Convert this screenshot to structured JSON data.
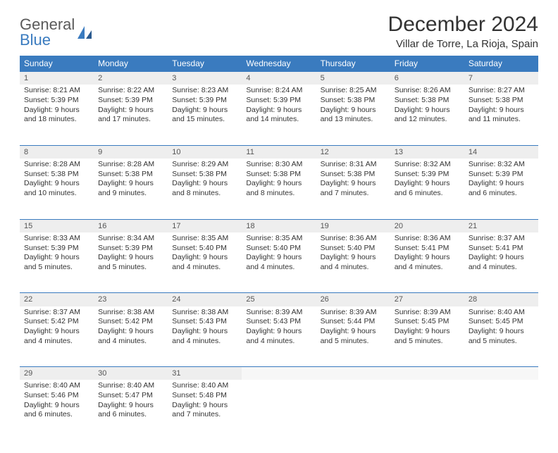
{
  "logo": {
    "part1": "General",
    "part2": "Blue"
  },
  "title": "December 2024",
  "location": "Villar de Torre, La Rioja, Spain",
  "colors": {
    "header_bg": "#3a7bbf",
    "header_text": "#ffffff",
    "daynum_bg": "#eeeeee",
    "row_border": "#3a7bbf",
    "text": "#333333"
  },
  "weekdays": [
    "Sunday",
    "Monday",
    "Tuesday",
    "Wednesday",
    "Thursday",
    "Friday",
    "Saturday"
  ],
  "weeks": [
    {
      "nums": [
        "1",
        "2",
        "3",
        "4",
        "5",
        "6",
        "7"
      ],
      "cells": [
        {
          "sunrise": "Sunrise: 8:21 AM",
          "sunset": "Sunset: 5:39 PM",
          "day1": "Daylight: 9 hours",
          "day2": "and 18 minutes."
        },
        {
          "sunrise": "Sunrise: 8:22 AM",
          "sunset": "Sunset: 5:39 PM",
          "day1": "Daylight: 9 hours",
          "day2": "and 17 minutes."
        },
        {
          "sunrise": "Sunrise: 8:23 AM",
          "sunset": "Sunset: 5:39 PM",
          "day1": "Daylight: 9 hours",
          "day2": "and 15 minutes."
        },
        {
          "sunrise": "Sunrise: 8:24 AM",
          "sunset": "Sunset: 5:39 PM",
          "day1": "Daylight: 9 hours",
          "day2": "and 14 minutes."
        },
        {
          "sunrise": "Sunrise: 8:25 AM",
          "sunset": "Sunset: 5:38 PM",
          "day1": "Daylight: 9 hours",
          "day2": "and 13 minutes."
        },
        {
          "sunrise": "Sunrise: 8:26 AM",
          "sunset": "Sunset: 5:38 PM",
          "day1": "Daylight: 9 hours",
          "day2": "and 12 minutes."
        },
        {
          "sunrise": "Sunrise: 8:27 AM",
          "sunset": "Sunset: 5:38 PM",
          "day1": "Daylight: 9 hours",
          "day2": "and 11 minutes."
        }
      ]
    },
    {
      "nums": [
        "8",
        "9",
        "10",
        "11",
        "12",
        "13",
        "14"
      ],
      "cells": [
        {
          "sunrise": "Sunrise: 8:28 AM",
          "sunset": "Sunset: 5:38 PM",
          "day1": "Daylight: 9 hours",
          "day2": "and 10 minutes."
        },
        {
          "sunrise": "Sunrise: 8:28 AM",
          "sunset": "Sunset: 5:38 PM",
          "day1": "Daylight: 9 hours",
          "day2": "and 9 minutes."
        },
        {
          "sunrise": "Sunrise: 8:29 AM",
          "sunset": "Sunset: 5:38 PM",
          "day1": "Daylight: 9 hours",
          "day2": "and 8 minutes."
        },
        {
          "sunrise": "Sunrise: 8:30 AM",
          "sunset": "Sunset: 5:38 PM",
          "day1": "Daylight: 9 hours",
          "day2": "and 8 minutes."
        },
        {
          "sunrise": "Sunrise: 8:31 AM",
          "sunset": "Sunset: 5:38 PM",
          "day1": "Daylight: 9 hours",
          "day2": "and 7 minutes."
        },
        {
          "sunrise": "Sunrise: 8:32 AM",
          "sunset": "Sunset: 5:39 PM",
          "day1": "Daylight: 9 hours",
          "day2": "and 6 minutes."
        },
        {
          "sunrise": "Sunrise: 8:32 AM",
          "sunset": "Sunset: 5:39 PM",
          "day1": "Daylight: 9 hours",
          "day2": "and 6 minutes."
        }
      ]
    },
    {
      "nums": [
        "15",
        "16",
        "17",
        "18",
        "19",
        "20",
        "21"
      ],
      "cells": [
        {
          "sunrise": "Sunrise: 8:33 AM",
          "sunset": "Sunset: 5:39 PM",
          "day1": "Daylight: 9 hours",
          "day2": "and 5 minutes."
        },
        {
          "sunrise": "Sunrise: 8:34 AM",
          "sunset": "Sunset: 5:39 PM",
          "day1": "Daylight: 9 hours",
          "day2": "and 5 minutes."
        },
        {
          "sunrise": "Sunrise: 8:35 AM",
          "sunset": "Sunset: 5:40 PM",
          "day1": "Daylight: 9 hours",
          "day2": "and 4 minutes."
        },
        {
          "sunrise": "Sunrise: 8:35 AM",
          "sunset": "Sunset: 5:40 PM",
          "day1": "Daylight: 9 hours",
          "day2": "and 4 minutes."
        },
        {
          "sunrise": "Sunrise: 8:36 AM",
          "sunset": "Sunset: 5:40 PM",
          "day1": "Daylight: 9 hours",
          "day2": "and 4 minutes."
        },
        {
          "sunrise": "Sunrise: 8:36 AM",
          "sunset": "Sunset: 5:41 PM",
          "day1": "Daylight: 9 hours",
          "day2": "and 4 minutes."
        },
        {
          "sunrise": "Sunrise: 8:37 AM",
          "sunset": "Sunset: 5:41 PM",
          "day1": "Daylight: 9 hours",
          "day2": "and 4 minutes."
        }
      ]
    },
    {
      "nums": [
        "22",
        "23",
        "24",
        "25",
        "26",
        "27",
        "28"
      ],
      "cells": [
        {
          "sunrise": "Sunrise: 8:37 AM",
          "sunset": "Sunset: 5:42 PM",
          "day1": "Daylight: 9 hours",
          "day2": "and 4 minutes."
        },
        {
          "sunrise": "Sunrise: 8:38 AM",
          "sunset": "Sunset: 5:42 PM",
          "day1": "Daylight: 9 hours",
          "day2": "and 4 minutes."
        },
        {
          "sunrise": "Sunrise: 8:38 AM",
          "sunset": "Sunset: 5:43 PM",
          "day1": "Daylight: 9 hours",
          "day2": "and 4 minutes."
        },
        {
          "sunrise": "Sunrise: 8:39 AM",
          "sunset": "Sunset: 5:43 PM",
          "day1": "Daylight: 9 hours",
          "day2": "and 4 minutes."
        },
        {
          "sunrise": "Sunrise: 8:39 AM",
          "sunset": "Sunset: 5:44 PM",
          "day1": "Daylight: 9 hours",
          "day2": "and 5 minutes."
        },
        {
          "sunrise": "Sunrise: 8:39 AM",
          "sunset": "Sunset: 5:45 PM",
          "day1": "Daylight: 9 hours",
          "day2": "and 5 minutes."
        },
        {
          "sunrise": "Sunrise: 8:40 AM",
          "sunset": "Sunset: 5:45 PM",
          "day1": "Daylight: 9 hours",
          "day2": "and 5 minutes."
        }
      ]
    },
    {
      "nums": [
        "29",
        "30",
        "31",
        "",
        "",
        "",
        ""
      ],
      "cells": [
        {
          "sunrise": "Sunrise: 8:40 AM",
          "sunset": "Sunset: 5:46 PM",
          "day1": "Daylight: 9 hours",
          "day2": "and 6 minutes."
        },
        {
          "sunrise": "Sunrise: 8:40 AM",
          "sunset": "Sunset: 5:47 PM",
          "day1": "Daylight: 9 hours",
          "day2": "and 6 minutes."
        },
        {
          "sunrise": "Sunrise: 8:40 AM",
          "sunset": "Sunset: 5:48 PM",
          "day1": "Daylight: 9 hours",
          "day2": "and 7 minutes."
        },
        {
          "sunrise": "",
          "sunset": "",
          "day1": "",
          "day2": ""
        },
        {
          "sunrise": "",
          "sunset": "",
          "day1": "",
          "day2": ""
        },
        {
          "sunrise": "",
          "sunset": "",
          "day1": "",
          "day2": ""
        },
        {
          "sunrise": "",
          "sunset": "",
          "day1": "",
          "day2": ""
        }
      ]
    }
  ]
}
